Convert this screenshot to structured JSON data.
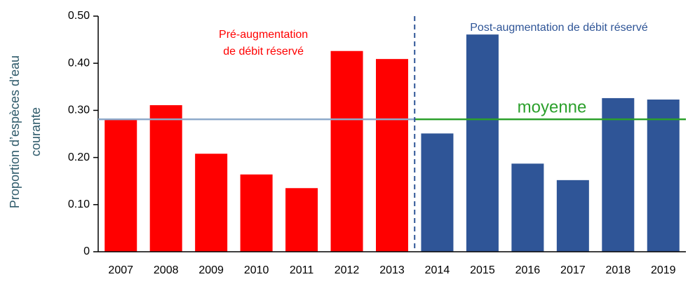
{
  "chart_data": {
    "type": "bar",
    "y_label": [
      "Proportion d’espèces d’eau",
      "courante"
    ],
    "categories": [
      "2007",
      "2008",
      "2009",
      "2010",
      "2011",
      "2012",
      "2013",
      "2014",
      "2015",
      "2016",
      "2017",
      "2018",
      "2019"
    ],
    "values": [
      0.28,
      0.311,
      0.208,
      0.164,
      0.135,
      0.426,
      0.409,
      0.251,
      0.461,
      0.187,
      0.152,
      0.326,
      0.323
    ],
    "colors": [
      "#ff0000",
      "#ff0000",
      "#ff0000",
      "#ff0000",
      "#ff0000",
      "#ff0000",
      "#ff0000",
      "#2f5597",
      "#2f5597",
      "#2f5597",
      "#2f5597",
      "#2f5597",
      "#2f5597"
    ],
    "ylim": [
      0,
      0.5
    ],
    "yticks": [
      {
        "value": 0,
        "label": "0"
      },
      {
        "value": 0.1,
        "label": "0.10"
      },
      {
        "value": 0.2,
        "label": "0.20"
      },
      {
        "value": 0.3,
        "label": "0.30"
      },
      {
        "value": 0.4,
        "label": "0.40"
      },
      {
        "value": 0.5,
        "label": "0.50"
      }
    ],
    "reference_lines": [
      {
        "value": 0.281,
        "color": "#8eaacb",
        "span": [
          0,
          6
        ]
      },
      {
        "value": 0.281,
        "color": "#2ca02c",
        "span": [
          7,
          12
        ]
      }
    ],
    "divider_after": 6,
    "divider_color": "#2f5597",
    "annotations": [
      {
        "lines": [
          "Pré-augmentation",
          "de débit réservé"
        ],
        "color": "#ff0000"
      },
      {
        "lines": [
          "Post-augmentation de débit réservé"
        ],
        "color": "#2f5597"
      },
      {
        "lines": [
          "moyenne"
        ],
        "color": "#2ca02c"
      }
    ]
  }
}
